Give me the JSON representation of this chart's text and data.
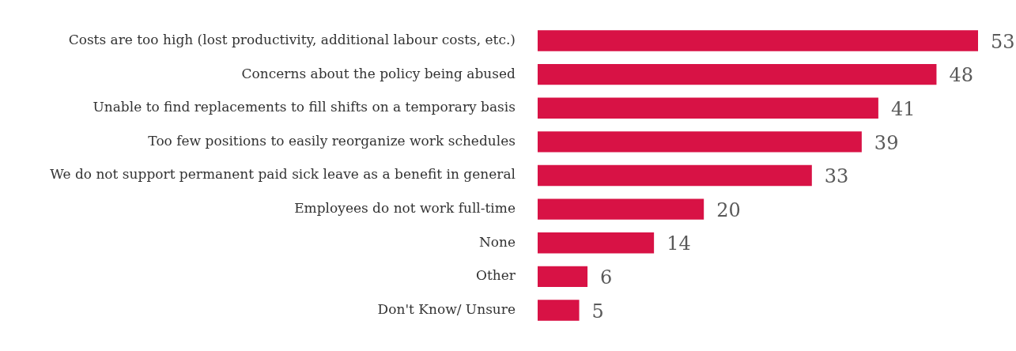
{
  "chart_data": {
    "type": "bar",
    "orientation": "horizontal",
    "categories": [
      "Costs are too high (lost productivity, additional labour costs, etc.)",
      "Concerns about the policy being abused",
      "Unable to find replacements to fill shifts on a temporary basis",
      "Too few positions to easily reorganize work schedules",
      "We do not support permanent paid sick leave as a benefit in general",
      "Employees do not work full-time",
      "None",
      "Other",
      "Don't Know/ Unsure"
    ],
    "values": [
      53,
      48,
      41,
      39,
      33,
      20,
      14,
      6,
      5
    ],
    "color": "#d81245",
    "data_labels": true,
    "legend": false,
    "tick_labels": "y"
  }
}
